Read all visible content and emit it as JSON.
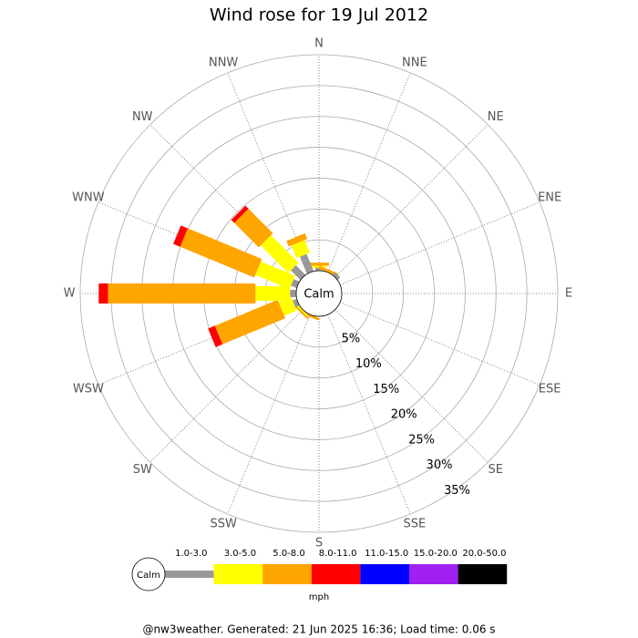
{
  "chart_data": {
    "type": "windrose",
    "title": "Wind rose for 19 Jul 2012",
    "categories": [
      "N",
      "NNE",
      "NE",
      "ENE",
      "E",
      "ESE",
      "SE",
      "SSE",
      "S",
      "SSW",
      "SW",
      "WSW",
      "W",
      "WNW",
      "NW",
      "NNW"
    ],
    "calm_label": "Calm",
    "ylim": [
      0,
      35
    ],
    "yticks": [
      {
        "value": 5,
        "label": "5%"
      },
      {
        "value": 10,
        "label": "10%"
      },
      {
        "value": 15,
        "label": "15%"
      },
      {
        "value": 20,
        "label": "20%"
      },
      {
        "value": 25,
        "label": "25%"
      },
      {
        "value": 30,
        "label": "30%"
      },
      {
        "value": 35,
        "label": "35%"
      }
    ],
    "series": [
      {
        "name": "1.0-3.0",
        "color": "#999999",
        "values": [
          0.5,
          0,
          0.6,
          0,
          0,
          0,
          0,
          0,
          0,
          0,
          0,
          0.7,
          1,
          1,
          2.2,
          3
        ]
      },
      {
        "name": "3.0-5.0",
        "color": "#ffff00",
        "values": [
          0.3,
          0,
          0,
          0,
          0,
          0,
          0,
          0,
          0,
          0,
          0.3,
          2.2,
          5.6,
          6,
          6.3,
          2.2
        ]
      },
      {
        "name": "5.0-8.0",
        "color": "#ffa500",
        "values": [
          0.5,
          0.5,
          0,
          0,
          0,
          0,
          0,
          0,
          0,
          0.4,
          0.3,
          11,
          23.9,
          13,
          5.6,
          1
        ]
      },
      {
        "name": "8.0-11.0",
        "color": "#ff0000",
        "values": [
          0,
          0,
          0,
          0,
          0,
          0,
          0,
          0,
          0,
          0,
          0,
          1.2,
          1.5,
          1.2,
          0.7,
          0
        ]
      },
      {
        "name": "11.0-15.0",
        "color": "#0000ff",
        "values": [
          0,
          0,
          0,
          0,
          0,
          0,
          0,
          0,
          0,
          0,
          0,
          0,
          0,
          0,
          0,
          0
        ]
      },
      {
        "name": "15.0-20.0",
        "color": "#a020f0",
        "values": [
          0,
          0,
          0,
          0,
          0,
          0,
          0,
          0,
          0,
          0,
          0,
          0,
          0,
          0,
          0,
          0
        ]
      },
      {
        "name": "20.0-50.0",
        "color": "#000000",
        "values": [
          0,
          0,
          0,
          0,
          0,
          0,
          0,
          0,
          0,
          0,
          0,
          0,
          0,
          0,
          0,
          0
        ]
      }
    ],
    "legend_unit": "mph",
    "footer": "@nw3weather. Generated: 21 Jun 2025 16:36; Load time: 0.06 s"
  }
}
